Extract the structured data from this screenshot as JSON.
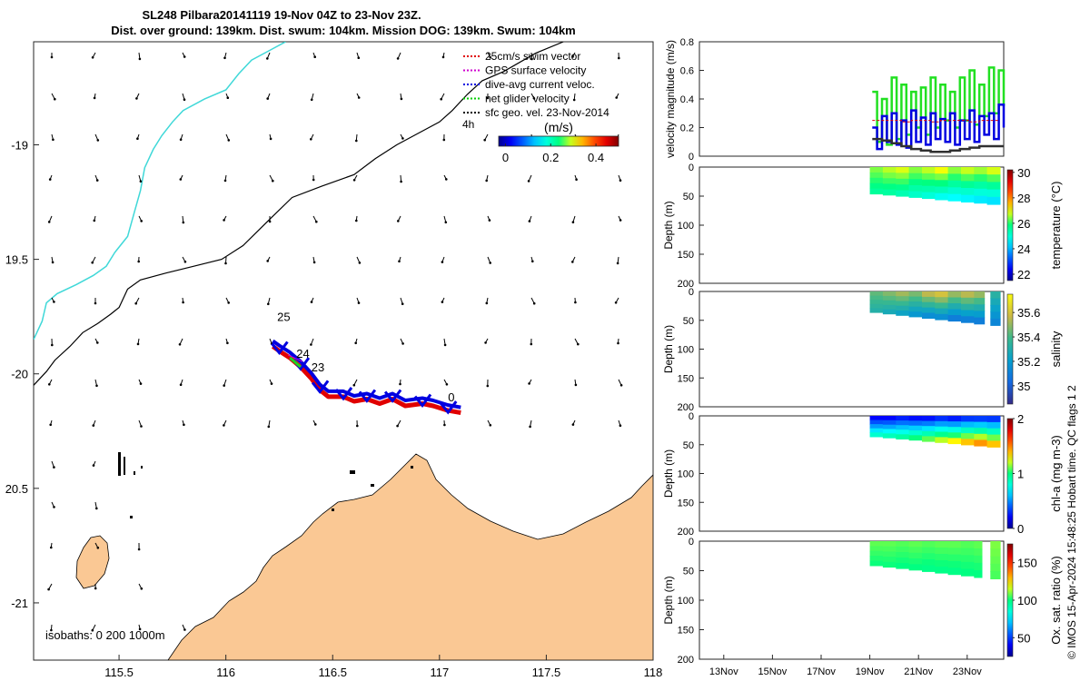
{
  "figure": {
    "title_line1": "SL248 Pilbara20141119 19-Nov 04Z to 23-Nov 23Z.",
    "title_line2": "Dist. over ground: 139km. Dist. swum: 104km. Mission DOG: 139km. Swum: 104km",
    "credit": "© IMOS 15-Apr-2024 15:48:25 Hobart time. QC flags 1  2"
  },
  "chart_data": [
    {
      "type": "map",
      "id": "track-map",
      "xlim": [
        115.1,
        118.0
      ],
      "ylim": [
        -21.25,
        -18.55
      ],
      "x_ticks": [
        115.5,
        116,
        116.5,
        117,
        117.5,
        118
      ],
      "x_tick_labels": [
        "115.5",
        "116",
        "116.5",
        "117",
        "117.5",
        "118"
      ],
      "y_ticks": [
        -19,
        -19.5,
        -20,
        -20.5,
        -21
      ],
      "y_tick_labels": [
        "-19",
        "19.5",
        "-20",
        "20.5",
        "-21"
      ],
      "legend": [
        {
          "label": "25cm/s swim vector",
          "color": "#e00000"
        },
        {
          "label": "GPS surface velocity",
          "color": "#d000d0"
        },
        {
          "label": "dive-avg current veloc.",
          "color": "#0000e0"
        },
        {
          "label": "net glider velocity",
          "color": "#00d000"
        },
        {
          "label": "sfc geo. vel. 23-Nov-2014",
          "color": "#000000"
        }
      ],
      "scale_label": "4h",
      "colorbar": {
        "title": "(m/s)",
        "range": [
          -0.03,
          0.5
        ],
        "ticks": [
          0,
          0.2,
          0.4
        ],
        "tick_labels": [
          "0",
          "0.2",
          "0.4"
        ]
      },
      "day_labels": [
        {
          "text": "25",
          "lon": 116.24,
          "lat": -19.77
        },
        {
          "text": "24",
          "lon": 116.33,
          "lat": -19.93
        },
        {
          "text": "23",
          "lon": 116.4,
          "lat": -19.99
        },
        {
          "text": "0",
          "lon": 117.04,
          "lat": -20.12
        }
      ],
      "isobath_label": "isobaths: 0   200  1000m",
      "track": [
        [
          117.1,
          -20.17
        ],
        [
          117.04,
          -20.16
        ],
        [
          116.97,
          -20.14
        ],
        [
          116.92,
          -20.13
        ],
        [
          116.84,
          -20.14
        ],
        [
          116.78,
          -20.11
        ],
        [
          116.72,
          -20.13
        ],
        [
          116.66,
          -20.11
        ],
        [
          116.6,
          -20.12
        ],
        [
          116.55,
          -20.1
        ],
        [
          116.48,
          -20.1
        ],
        [
          116.44,
          -20.07
        ],
        [
          116.4,
          -20.02
        ],
        [
          116.35,
          -19.97
        ],
        [
          116.3,
          -19.93
        ],
        [
          116.25,
          -19.9
        ],
        [
          116.22,
          -19.88
        ]
      ],
      "isobath_200m": [
        [
          115.1,
          -20.05
        ],
        [
          115.16,
          -19.99
        ],
        [
          115.2,
          -19.94
        ],
        [
          115.27,
          -19.88
        ],
        [
          115.33,
          -19.82
        ],
        [
          115.4,
          -19.78
        ],
        [
          115.46,
          -19.74
        ],
        [
          115.5,
          -19.71
        ],
        [
          115.54,
          -19.63
        ],
        [
          115.6,
          -19.59
        ],
        [
          115.72,
          -19.56
        ],
        [
          115.85,
          -19.53
        ],
        [
          115.98,
          -19.5
        ],
        [
          116.08,
          -19.44
        ],
        [
          116.2,
          -19.33
        ],
        [
          116.31,
          -19.23
        ],
        [
          116.45,
          -19.18
        ],
        [
          116.6,
          -19.13
        ],
        [
          116.7,
          -19.06
        ],
        [
          116.8,
          -19.0
        ],
        [
          116.9,
          -18.95
        ],
        [
          117.0,
          -18.9
        ],
        [
          117.06,
          -18.85
        ],
        [
          117.13,
          -18.78
        ],
        [
          117.2,
          -18.72
        ],
        [
          117.3,
          -18.68
        ],
        [
          117.45,
          -18.6
        ],
        [
          117.58,
          -18.55
        ]
      ],
      "isobath_1000m": [
        [
          115.1,
          -19.85
        ],
        [
          115.14,
          -19.77
        ],
        [
          115.16,
          -19.69
        ],
        [
          115.21,
          -19.65
        ],
        [
          115.3,
          -19.61
        ],
        [
          115.38,
          -19.57
        ],
        [
          115.44,
          -19.53
        ],
        [
          115.48,
          -19.47
        ],
        [
          115.54,
          -19.4
        ],
        [
          115.57,
          -19.3
        ],
        [
          115.6,
          -19.2
        ],
        [
          115.62,
          -19.1
        ],
        [
          115.66,
          -19.02
        ],
        [
          115.7,
          -18.96
        ],
        [
          115.75,
          -18.9
        ],
        [
          115.8,
          -18.85
        ],
        [
          115.9,
          -18.8
        ],
        [
          116.0,
          -18.76
        ],
        [
          116.06,
          -18.69
        ],
        [
          116.12,
          -18.63
        ],
        [
          116.2,
          -18.59
        ],
        [
          116.28,
          -18.55
        ]
      ]
    },
    {
      "type": "line",
      "id": "velocity-panel",
      "ylabel": "velocity magnitude (m/s)",
      "xlim": [
        0,
        12.5
      ],
      "ylim": [
        0,
        0.8
      ],
      "y_ticks": [
        0,
        0.2,
        0.4,
        0.6,
        0.8
      ],
      "y_tick_labels": [
        "0",
        "0.2",
        "0.4",
        "0.6",
        "0.8"
      ],
      "series": [
        {
          "name": "net glider velocity",
          "color": "#22e022",
          "x": [
            7.1,
            7.3,
            7.5,
            7.7,
            7.9,
            8.1,
            8.3,
            8.5,
            8.7,
            8.9,
            9.1,
            9.3,
            9.5,
            9.7,
            9.9,
            10.1,
            10.3,
            10.5,
            10.7,
            10.9,
            11.1,
            11.3,
            11.5,
            11.7,
            11.9,
            12.1,
            12.3,
            12.5
          ],
          "values": [
            0.45,
            0.1,
            0.4,
            0.08,
            0.55,
            0.12,
            0.5,
            0.15,
            0.45,
            0.2,
            0.48,
            0.15,
            0.55,
            0.2,
            0.5,
            0.25,
            0.45,
            0.2,
            0.55,
            0.25,
            0.6,
            0.22,
            0.5,
            0.28,
            0.62,
            0.3,
            0.6,
            0.35
          ]
        },
        {
          "name": "dive-avg current veloc.",
          "color": "#0000e0",
          "x": [
            7.1,
            7.3,
            7.5,
            7.7,
            7.9,
            8.1,
            8.3,
            8.5,
            8.7,
            8.9,
            9.1,
            9.3,
            9.5,
            9.7,
            9.9,
            10.1,
            10.3,
            10.5,
            10.7,
            10.9,
            11.1,
            11.3,
            11.5,
            11.7,
            11.9,
            12.1,
            12.3,
            12.5
          ],
          "values": [
            0.2,
            0.05,
            0.28,
            0.1,
            0.3,
            0.08,
            0.25,
            0.06,
            0.32,
            0.1,
            0.27,
            0.08,
            0.3,
            0.12,
            0.26,
            0.1,
            0.3,
            0.08,
            0.25,
            0.12,
            0.32,
            0.1,
            0.28,
            0.15,
            0.3,
            0.12,
            0.36,
            0.2
          ]
        },
        {
          "name": "swim vector",
          "color": "#e00000",
          "x": [
            7.1,
            7.5,
            7.9,
            8.3,
            8.7,
            9.1,
            9.5,
            9.9,
            10.3,
            10.7,
            11.1,
            11.5,
            11.9,
            12.3
          ],
          "values": [
            0.25,
            0.25,
            0.25,
            0.24,
            0.25,
            0.25,
            0.24,
            0.25,
            0.25,
            0.25,
            0.24,
            0.25,
            0.25,
            0.25
          ]
        },
        {
          "name": "sfc geo. vel.",
          "color": "#303030",
          "x": [
            7.1,
            7.5,
            7.9,
            8.3,
            8.7,
            9.1,
            9.5,
            9.9,
            10.3,
            10.7,
            11.1,
            11.5,
            11.9,
            12.3,
            12.5
          ],
          "values": [
            0.12,
            0.11,
            0.09,
            0.07,
            0.05,
            0.04,
            0.03,
            0.03,
            0.04,
            0.05,
            0.06,
            0.07,
            0.07,
            0.07,
            0.07
          ]
        }
      ]
    },
    {
      "type": "heatmap",
      "id": "temperature-panel",
      "ylabel": "Depth (m)",
      "colorbar_label": "temperature (°C)",
      "clim": [
        21.5,
        30.2
      ],
      "colorbar_ticks": [
        22,
        24,
        26,
        28,
        30
      ],
      "colorbar_tick_labels": [
        "22",
        "24",
        "26",
        "28",
        "30"
      ],
      "ylim": [
        0,
        200
      ],
      "y_ticks": [
        0,
        50,
        100,
        150,
        200
      ],
      "y_tick_labels": [
        "0",
        "50",
        "100",
        "150",
        "200"
      ],
      "data_xlim": [
        7.0,
        12.35
      ],
      "depth_top": 0,
      "depth_bottom_start": 45,
      "depth_bottom_end": 65,
      "surface_values": [
        26.5,
        26.8,
        27.0,
        26.6,
        26.9,
        27.2,
        26.7,
        27.0,
        26.8,
        27.1
      ],
      "bottom_values": [
        25.5,
        25.4,
        25.2,
        25.0,
        24.8,
        24.5,
        24.4,
        24.3,
        24.2,
        24.1
      ]
    },
    {
      "type": "heatmap",
      "id": "salinity-panel",
      "ylabel": "Depth (m)",
      "colorbar_label": "salinity",
      "clim": [
        34.85,
        35.75
      ],
      "colorbar_ticks": [
        35.0,
        35.2,
        35.4,
        35.6
      ],
      "colorbar_tick_labels": [
        "35",
        "35.2",
        "35.4",
        "35.6"
      ],
      "ylim": [
        0,
        200
      ],
      "y_ticks": [
        0,
        50,
        100,
        150,
        200
      ],
      "y_tick_labels": [
        "0",
        "50",
        "100",
        "150",
        "200"
      ],
      "data_xlim": [
        7.0,
        12.35
      ],
      "gap": [
        11.7,
        11.95
      ],
      "depth_top": 0,
      "depth_bottom_start": 35,
      "depth_bottom_end": 60,
      "surface_values": [
        35.45,
        35.5,
        35.55,
        35.5,
        35.6,
        35.65,
        35.55,
        35.6,
        35.55,
        35.35
      ],
      "bottom_values": [
        35.3,
        35.25,
        35.2,
        35.15,
        35.1,
        35.1,
        35.05,
        35.05,
        35.05,
        35.1
      ]
    },
    {
      "type": "heatmap",
      "id": "chla-panel",
      "ylabel": "Depth (m)",
      "colorbar_label": "chl-a (mg m-3)",
      "clim": [
        0,
        2
      ],
      "colorbar_ticks": [
        0,
        1,
        2
      ],
      "colorbar_tick_labels": [
        "0",
        "1",
        "2"
      ],
      "ylim": [
        0,
        200
      ],
      "y_ticks": [
        0,
        50,
        100,
        150,
        200
      ],
      "y_tick_labels": [
        "0",
        "50",
        "100",
        "150",
        "200"
      ],
      "data_xlim": [
        7.0,
        12.35
      ],
      "depth_top": 0,
      "depth_bottom_start": 35,
      "depth_bottom_end": 55,
      "surface_values": [
        0.15,
        0.15,
        0.2,
        0.15,
        0.15,
        0.2,
        0.15,
        0.2,
        0.2,
        0.2
      ],
      "bottom_values": [
        0.9,
        0.95,
        1.0,
        1.1,
        1.2,
        1.3,
        1.4,
        1.5,
        1.6,
        1.5
      ]
    },
    {
      "type": "heatmap",
      "id": "oxygen-panel",
      "ylabel": "Depth (m)",
      "colorbar_label": "Ox. sat. ratio (%)",
      "clim": [
        25,
        175
      ],
      "colorbar_ticks": [
        50,
        100,
        150
      ],
      "colorbar_tick_labels": [
        "50",
        "100",
        "150"
      ],
      "ylim": [
        0,
        200
      ],
      "y_ticks": [
        0,
        50,
        100,
        150,
        200
      ],
      "y_tick_labels": [
        "0",
        "50",
        "100",
        "150",
        "200"
      ],
      "data_xlim": [
        7.0,
        12.35
      ],
      "gap": [
        11.6,
        11.95
      ],
      "depth_top": 0,
      "depth_bottom_start": 40,
      "depth_bottom_end": 65,
      "surface_values": [
        108,
        108,
        107,
        108,
        107,
        108,
        108,
        107,
        108,
        110
      ],
      "bottom_values": [
        100,
        100,
        99,
        99,
        98,
        98,
        98,
        99,
        99,
        105
      ],
      "x_ticks": [
        1,
        3,
        5,
        7,
        9,
        11
      ],
      "x_tick_labels": [
        "13Nov",
        "15Nov",
        "17Nov",
        "19Nov",
        "21Nov",
        "23Nov"
      ]
    }
  ]
}
